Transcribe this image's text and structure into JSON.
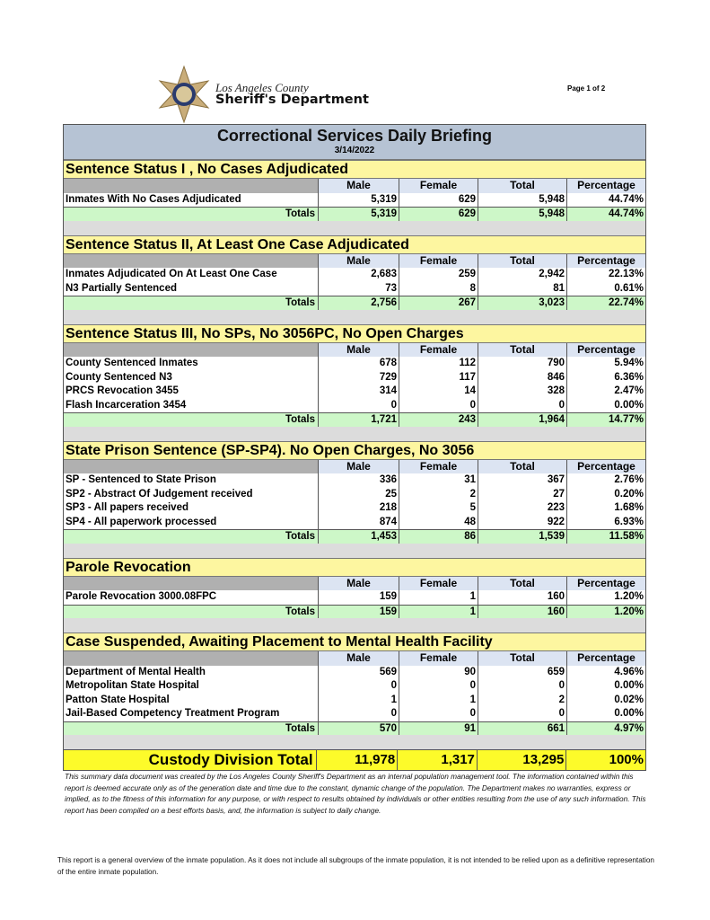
{
  "header": {
    "org_line1": "Los Angeles County",
    "org_line2": "Sheriff's Department",
    "page": "Page 1 of 2"
  },
  "report": {
    "title": "Correctional Services Daily Briefing",
    "date": "3/14/2022",
    "columns": [
      "Male",
      "Female",
      "Total",
      "Percentage"
    ],
    "totals_label": "Totals",
    "sections": [
      {
        "title": "Sentence Status I , No Cases Adjudicated",
        "rows": [
          [
            "Inmates With No Cases Adjudicated",
            "5,319",
            "629",
            "5,948",
            "44.74%"
          ]
        ],
        "totals": [
          "5,319",
          "629",
          "5,948",
          "44.74%"
        ]
      },
      {
        "title": "Sentence Status II, At Least One Case Adjudicated",
        "rows": [
          [
            "Inmates Adjudicated On At Least One Case",
            "2,683",
            "259",
            "2,942",
            "22.13%"
          ],
          [
            "N3 Partially Sentenced",
            "73",
            "8",
            "81",
            "0.61%"
          ]
        ],
        "totals": [
          "2,756",
          "267",
          "3,023",
          "22.74%"
        ]
      },
      {
        "title": "Sentence Status III, No SPs, No 3056PC, No Open Charges",
        "rows": [
          [
            "County Sentenced Inmates",
            "678",
            "112",
            "790",
            "5.94%"
          ],
          [
            "County Sentenced N3",
            "729",
            "117",
            "846",
            "6.36%"
          ],
          [
            "PRCS Revocation 3455",
            "314",
            "14",
            "328",
            "2.47%"
          ],
          [
            "Flash Incarceration 3454",
            "0",
            "0",
            "0",
            "0.00%"
          ]
        ],
        "totals": [
          "1,721",
          "243",
          "1,964",
          "14.77%"
        ]
      },
      {
        "title": "State Prison Sentence (SP-SP4). No Open Charges, No 3056",
        "rows": [
          [
            "SP - Sentenced to State Prison",
            "336",
            "31",
            "367",
            "2.76%"
          ],
          [
            "SP2 - Abstract Of Judgement received",
            "25",
            "2",
            "27",
            "0.20%"
          ],
          [
            "SP3 - All papers received",
            "218",
            "5",
            "223",
            "1.68%"
          ],
          [
            "SP4 - All paperwork processed",
            "874",
            "48",
            "922",
            "6.93%"
          ]
        ],
        "totals": [
          "1,453",
          "86",
          "1,539",
          "11.58%"
        ]
      },
      {
        "title": "Parole Revocation",
        "rows": [
          [
            "Parole Revocation 3000.08FPC",
            "159",
            "1",
            "160",
            "1.20%"
          ]
        ],
        "totals": [
          "159",
          "1",
          "160",
          "1.20%"
        ]
      },
      {
        "title": "Case Suspended, Awaiting Placement to Mental Health Facility",
        "rows": [
          [
            "Department of Mental Health",
            "569",
            "90",
            "659",
            "4.96%"
          ],
          [
            "Metropolitan State Hospital",
            "0",
            "0",
            "0",
            "0.00%"
          ],
          [
            "Patton State Hospital",
            "1",
            "1",
            "2",
            "0.02%"
          ],
          [
            "Jail-Based Competency Treatment Program",
            "0",
            "0",
            "0",
            "0.00%"
          ]
        ],
        "totals": [
          "570",
          "91",
          "661",
          "4.97%"
        ]
      }
    ],
    "grand_total": {
      "label": "Custody Division Total",
      "values": [
        "11,978",
        "1,317",
        "13,295",
        "100%"
      ]
    }
  },
  "disclaimer": "This summary data document was created by the Los Angeles County Sheriff's Department as an internal population management tool.  The information contained within this report is deemed accurate only as of the generation date and time due to the constant, dynamic change of the population.  The Department makes no warranties, express or implied, as to the fitness of this information for any purpose, or with respect to results obtained by individuals or other entities resulting from the use of any such information.  This report has been compiled on a best efforts basis, and, the information is subject to daily change.",
  "footnote": "This report is a general overview of the inmate population.  As it does not include all subgroups of the inmate population, it is not intended to be relied upon as a definitive representation of the entire inmate population.",
  "colors": {
    "title_bg": "#b6c3d4",
    "section_bg": "#fdf6a0",
    "totals_bg": "#cdf7c8",
    "grand_bg": "#fdfb2a"
  }
}
